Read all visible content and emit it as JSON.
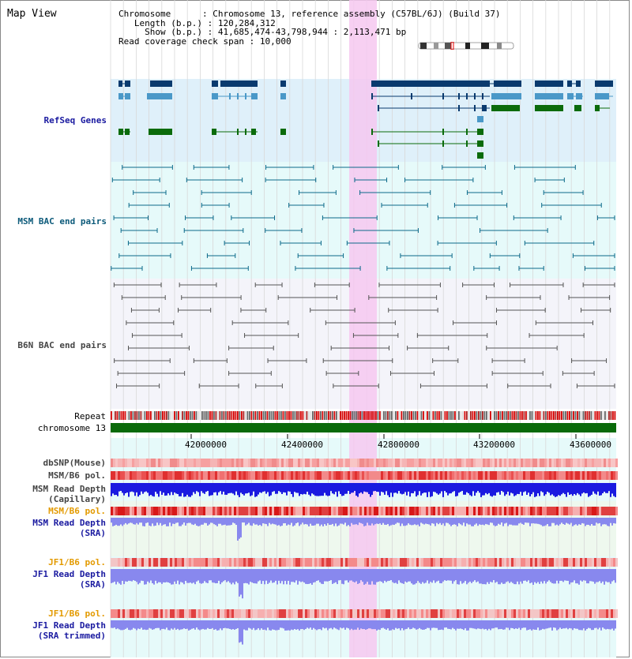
{
  "window": {
    "title": "Map View"
  },
  "info": {
    "chromosome_key": "Chromosome",
    "chromosome_val": "Chromosome 13, reference assembly (C57BL/6J) (Build 37)",
    "length_key": "Length (b.p.)",
    "length_val": "120,284,312",
    "show_key": "Show (b.p.)",
    "show_val": "41,685,474-43,798,944 : 2,113,471 bp",
    "coverage_key": "Read coverage check span",
    "coverage_val": "10,000"
  },
  "tracks": {
    "refseq": "RefSeq Genes",
    "msm_bac": "MSM BAC end pairs",
    "b6n_bac": "B6N BAC end pairs",
    "repeat": "Repeat",
    "chromosome": "chromosome 13",
    "dbsnp": "dbSNP(Mouse)",
    "msm_b6_pol_cap": "MSM/B6 pol.",
    "msm_depth_cap_1": "MSM Read Depth",
    "msm_depth_cap_2": "(Capillary)",
    "msm_b6_pol_sra": "MSM/B6 pol.",
    "msm_depth_sra_1": "MSM Read Depth",
    "msm_depth_sra_2": "(SRA)",
    "jf1_pol_sra": "JF1/B6 pol.",
    "jf1_depth_sra_1": "JF1 Read Depth",
    "jf1_depth_sra_2": "(SRA)",
    "jf1_pol_trim": "JF1/B6 pol.",
    "jf1_depth_trim_1": "JF1 Read Depth",
    "jf1_depth_trim_2": "(SRA trimmed)"
  },
  "axis": {
    "ticks": [
      "42000000",
      "42400000",
      "42800000",
      "43200000",
      "43600000"
    ]
  },
  "colors": {
    "gene_dark": "#0a3a6e",
    "gene_light": "#4a98c8",
    "gene_green": "#0b6b0b",
    "bac_teal": "#0c6a8a",
    "bac_grey": "#555555",
    "highlight": "#f6c8f0",
    "chrom_green": "#0a6a0a",
    "depth_blue": "#1a1ae0",
    "depth_light": "#8888ee"
  }
}
